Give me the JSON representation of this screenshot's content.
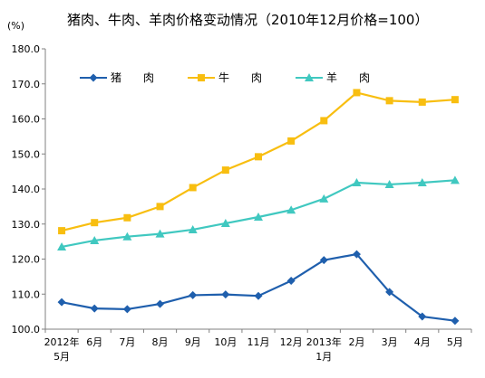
{
  "chart_data": {
    "type": "line",
    "title": "猪肉、牛肉、羊肉价格变动情况（2010年12月价格=100）",
    "unit_label": "(%)",
    "categories": [
      [
        "2012年",
        "5月"
      ],
      [
        "6月"
      ],
      [
        "7月"
      ],
      [
        "8月"
      ],
      [
        "9月"
      ],
      [
        "10月"
      ],
      [
        "11月"
      ],
      [
        "12月"
      ],
      [
        "2013年",
        "1月"
      ],
      [
        "2月"
      ],
      [
        "3月"
      ],
      [
        "4月"
      ],
      [
        "5月"
      ]
    ],
    "ylim": [
      100,
      180
    ],
    "yticks": [
      "100.0",
      "110.0",
      "120.0",
      "130.0",
      "140.0",
      "150.0",
      "160.0",
      "170.0",
      "180.0"
    ],
    "grid": false,
    "legend_position": "top",
    "series": [
      {
        "name": "猪　　肉",
        "color": "#1F5FAD",
        "marker": "diamond",
        "values": [
          107.7,
          105.9,
          105.7,
          107.2,
          109.7,
          109.9,
          109.5,
          113.8,
          119.7,
          121.4,
          110.6,
          103.6,
          102.4
        ]
      },
      {
        "name": "牛　　肉",
        "color": "#F8BE10",
        "marker": "square",
        "values": [
          128.1,
          130.4,
          131.8,
          135.0,
          140.4,
          145.4,
          149.2,
          153.7,
          159.5,
          167.5,
          165.2,
          164.8,
          165.5
        ]
      },
      {
        "name": "羊　　肉",
        "color": "#40C8C0",
        "marker": "triangle",
        "values": [
          123.5,
          125.3,
          126.4,
          127.2,
          128.4,
          130.2,
          132.0,
          134.0,
          137.2,
          141.8,
          141.3,
          141.8,
          142.5
        ]
      }
    ]
  }
}
